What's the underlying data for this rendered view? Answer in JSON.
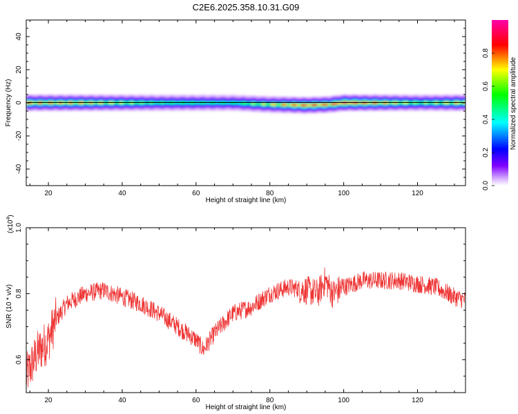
{
  "title": "C2E6.2025.358.10.31.G09",
  "chart_data": [
    {
      "type": "heatmap",
      "xlabel": "Height of straight line (km)",
      "ylabel": "Frequency (Hz)",
      "xlim": [
        14,
        133
      ],
      "ylim": [
        -50,
        50
      ],
      "xticks": [
        20,
        40,
        60,
        80,
        100,
        120
      ],
      "yticks": [
        -40,
        -20,
        0,
        20,
        40
      ],
      "colorbar": {
        "label": "Normalized spectral amplitude",
        "range": [
          0,
          1
        ],
        "ticks": [
          "0.0",
          "0.2",
          "0.4",
          "0.6",
          "0.8"
        ]
      },
      "ridge": {
        "description_values": "frequency offset of spectral peak vs height",
        "x": [
          14,
          30,
          50,
          70,
          80,
          90,
          96,
          100,
          110,
          120,
          133
        ],
        "center_hz": [
          0,
          0,
          0,
          0,
          -1,
          -1.5,
          -1,
          0,
          0,
          0,
          0
        ],
        "peak_amplitude": [
          0.8,
          0.75,
          0.55,
          0.5,
          0.7,
          0.9,
          0.85,
          0.95,
          0.8,
          0.6,
          0.75
        ]
      }
    },
    {
      "type": "line",
      "xlabel": "Height of straight line (km)",
      "ylabel": "SNR (10 * v/v)",
      "yscale_note": "(x10^4)",
      "xlim": [
        14,
        133
      ],
      "ylim": [
        0.5,
        1.0
      ],
      "xticks": [
        20,
        40,
        60,
        80,
        100,
        120
      ],
      "yticks": [
        "0.6",
        "0.8",
        "1.0"
      ],
      "series": [
        {
          "color": "#ee3333",
          "x": [
            14,
            17,
            20,
            22,
            25,
            30,
            35,
            40,
            45,
            50,
            55,
            60,
            62,
            65,
            70,
            75,
            80,
            85,
            90,
            93,
            95,
            97,
            100,
            105,
            110,
            115,
            120,
            125,
            130,
            133
          ],
          "y": [
            0.55,
            0.62,
            0.66,
            0.72,
            0.77,
            0.8,
            0.81,
            0.79,
            0.77,
            0.74,
            0.7,
            0.66,
            0.63,
            0.68,
            0.74,
            0.76,
            0.8,
            0.82,
            0.81,
            0.8,
            0.84,
            0.8,
            0.82,
            0.84,
            0.84,
            0.84,
            0.83,
            0.82,
            0.79,
            0.78
          ]
        }
      ]
    }
  ]
}
